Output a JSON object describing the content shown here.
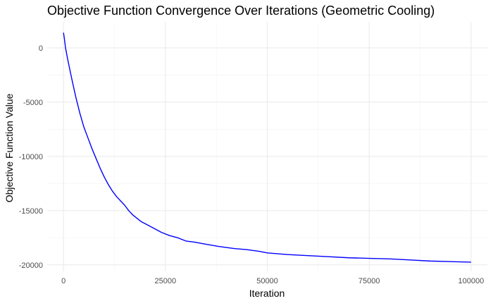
{
  "chart_data": {
    "type": "line",
    "title": "Objective Function Convergence Over Iterations (Geometric Cooling)",
    "xlabel": "Iteration",
    "ylabel": "Objective Function Value",
    "xlim": [
      -4000,
      104000
    ],
    "ylim": [
      -20600,
      2400
    ],
    "x_ticks": [
      0,
      25000,
      50000,
      75000,
      100000
    ],
    "x_tick_labels": [
      "0",
      "25000",
      "50000",
      "75000",
      "100000"
    ],
    "y_ticks": [
      0,
      -5000,
      -10000,
      -15000,
      -20000
    ],
    "y_tick_labels": [
      "0",
      "-5000",
      "-10000",
      "-15000",
      "-20000"
    ],
    "grid": true,
    "legend": "none",
    "series": [
      {
        "color": "#0000ff",
        "x": [
          0,
          200,
          500,
          1000,
          2000,
          3000,
          4000,
          5000,
          6000,
          7000,
          8000,
          9000,
          10000,
          11000,
          12000,
          13000,
          14000,
          15000,
          16000,
          17000,
          18000,
          19000,
          20000,
          22000,
          24000,
          26000,
          28000,
          30000,
          32000,
          35000,
          38000,
          40000,
          42000,
          45000,
          48000,
          50000,
          55000,
          60000,
          65000,
          70000,
          75000,
          80000,
          85000,
          90000,
          95000,
          100000
        ],
        "y": [
          1400,
          900,
          0,
          -1000,
          -2800,
          -4500,
          -6000,
          -7300,
          -8300,
          -9300,
          -10200,
          -11100,
          -11900,
          -12600,
          -13200,
          -13700,
          -14100,
          -14500,
          -15000,
          -15400,
          -15700,
          -16000,
          -16200,
          -16600,
          -17000,
          -17300,
          -17500,
          -17800,
          -17900,
          -18100,
          -18300,
          -18400,
          -18500,
          -18600,
          -18750,
          -18900,
          -19050,
          -19150,
          -19250,
          -19350,
          -19400,
          -19450,
          -19550,
          -19650,
          -19700,
          -19750
        ]
      }
    ]
  }
}
